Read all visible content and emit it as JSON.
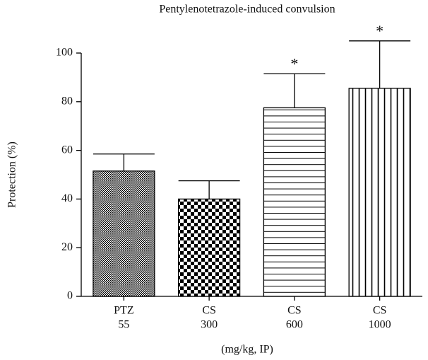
{
  "chart_data": {
    "type": "bar",
    "title": "Pentylenotetrazole-induced convulsion",
    "y_label": "Protection (%)",
    "x_label": "(mg/kg, IP)",
    "categories": [
      [
        "PTZ",
        "55"
      ],
      [
        "CS",
        "300"
      ],
      [
        "CS",
        "600"
      ],
      [
        "CS",
        "1000"
      ]
    ],
    "values": [
      51.5,
      40,
      77.5,
      85.5
    ],
    "errors": [
      7,
      7.5,
      14,
      19.5
    ],
    "significance": [
      null,
      null,
      "*",
      "*"
    ],
    "patterns": [
      "fine-grid",
      "checker",
      "horizontal",
      "vertical"
    ],
    "color": "#000000",
    "ylim": [
      0,
      100
    ],
    "yticks": [
      0,
      20,
      40,
      60,
      80,
      100
    ],
    "grid": false
  }
}
